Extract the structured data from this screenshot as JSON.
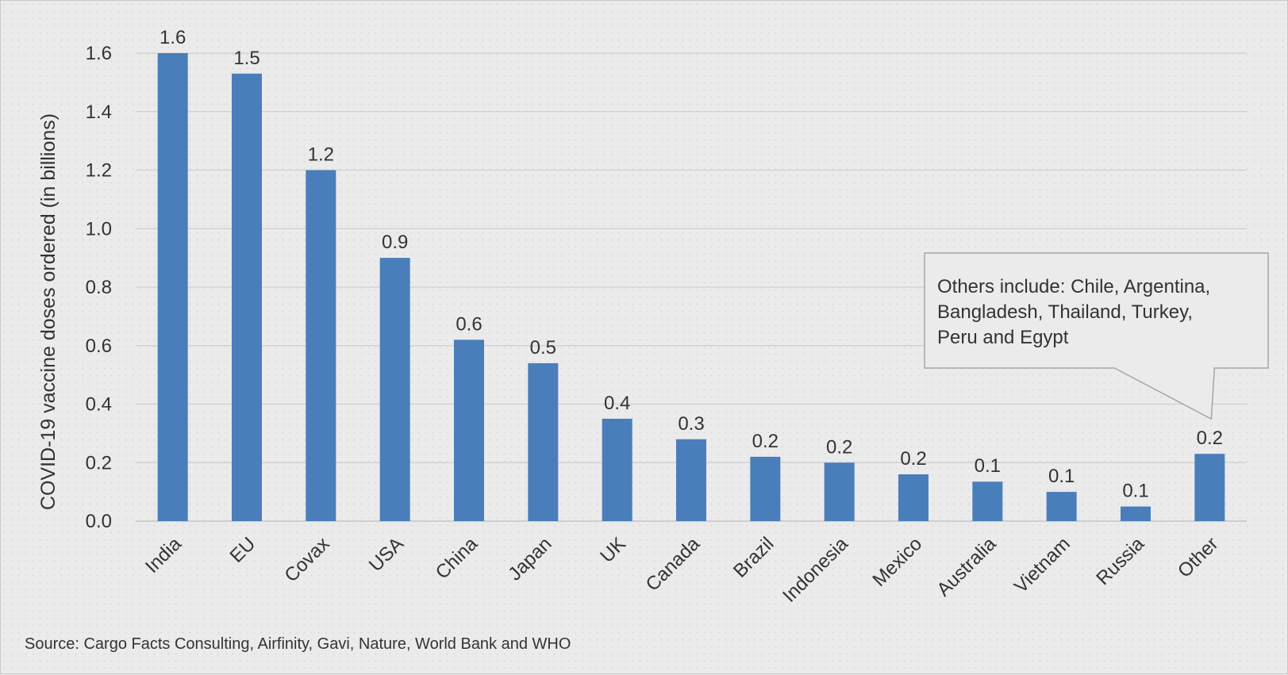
{
  "chart_data": {
    "type": "bar",
    "categories": [
      "India",
      "EU",
      "Covax",
      "USA",
      "China",
      "Japan",
      "UK",
      "Canada",
      "Brazil",
      "Indonesia",
      "Mexico",
      "Australia",
      "Vietnam",
      "Russia",
      "Other"
    ],
    "values": [
      1.6,
      1.53,
      1.2,
      0.9,
      0.62,
      0.54,
      0.35,
      0.28,
      0.22,
      0.2,
      0.16,
      0.135,
      0.1,
      0.05,
      0.23
    ],
    "data_labels": [
      "1.6",
      "1.5",
      "1.2",
      "0.9",
      "0.6",
      "0.5",
      "0.4",
      "0.3",
      "0.2",
      "0.2",
      "0.2",
      "0.1",
      "0.1",
      "0.1",
      "0.2"
    ],
    "ylabel": "COVID-19 vaccine doses ordered (in billions)",
    "xlabel": "",
    "ylim": [
      0,
      1.6
    ],
    "yticks": [
      "0.0",
      "0.2",
      "0.4",
      "0.6",
      "0.8",
      "1.0",
      "1.2",
      "1.4",
      "1.6"
    ],
    "grid": true,
    "bar_color": "#4a7ebb",
    "annotation": {
      "lines": [
        "Others include: Chile, Argentina,",
        "Bangladesh, Thailand, Turkey,",
        "Peru and Egypt"
      ],
      "target_category": "Other"
    }
  },
  "footer": {
    "source": "Source: Cargo Facts Consulting, Airfinity, Gavi, Nature, World Bank and WHO"
  }
}
